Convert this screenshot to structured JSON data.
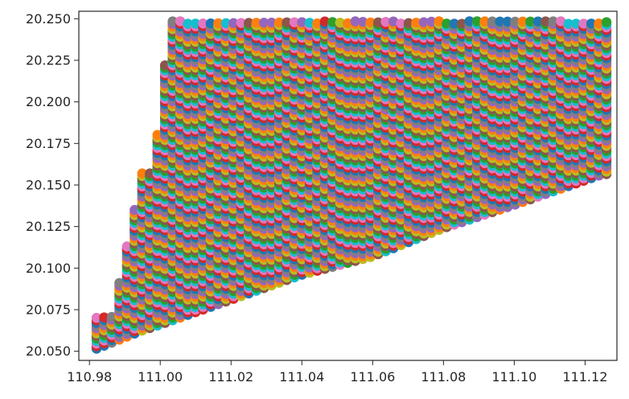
{
  "chart_data": {
    "type": "scatter",
    "title": "",
    "xlabel": "",
    "ylabel": "",
    "xlim": [
      110.977,
      111.129
    ],
    "ylim": [
      20.0445,
      20.2545
    ],
    "grid": false,
    "legend": "none",
    "x_ticks": [
      110.98,
      111.0,
      111.02,
      111.04,
      111.06,
      111.08,
      111.1,
      111.12
    ],
    "x_tick_labels": [
      "110.98",
      "111.00",
      "111.02",
      "111.04",
      "111.06",
      "111.08",
      "111.10",
      "111.12"
    ],
    "y_ticks": [
      20.05,
      20.075,
      20.1,
      20.125,
      20.15,
      20.175,
      20.2,
      20.225,
      20.25
    ],
    "y_tick_labels": [
      "20.050",
      "20.075",
      "20.100",
      "20.125",
      "20.150",
      "20.175",
      "20.200",
      "20.225",
      "20.250"
    ],
    "x_range": [
      110.982,
      111.125
    ],
    "x_step": 0.00215,
    "y_step": 0.00155,
    "y_max": 20.2485,
    "lower_boundary": [
      {
        "x": 110.982,
        "y": 20.0515
      },
      {
        "x": 110.995,
        "y": 20.0625
      },
      {
        "x": 111.0,
        "y": 20.066
      },
      {
        "x": 111.02,
        "y": 20.081
      },
      {
        "x": 111.04,
        "y": 20.096
      },
      {
        "x": 111.06,
        "y": 20.107
      },
      {
        "x": 111.08,
        "y": 20.124
      },
      {
        "x": 111.1,
        "y": 20.138
      },
      {
        "x": 111.125,
        "y": 20.1565
      }
    ],
    "left_boundary": [
      {
        "x": 110.982,
        "y": 20.0715
      },
      {
        "x": 110.9865,
        "y": 20.0915
      },
      {
        "x": 110.9885,
        "y": 20.1145
      },
      {
        "x": 110.9915,
        "y": 20.136
      },
      {
        "x": 110.9945,
        "y": 20.158
      },
      {
        "x": 110.9975,
        "y": 20.1805
      },
      {
        "x": 110.9995,
        "y": 20.2005
      },
      {
        "x": 111.0005,
        "y": 20.2225
      },
      {
        "x": 111.0015,
        "y": 20.2435
      },
      {
        "x": 111.0025,
        "y": 20.2485
      }
    ],
    "palette": [
      "#1f77b4",
      "#ff7f0e",
      "#2ca02c",
      "#d62728",
      "#9467bd",
      "#8c564b",
      "#e377c2",
      "#7f7f7f",
      "#bcbd22",
      "#17becf"
    ]
  }
}
